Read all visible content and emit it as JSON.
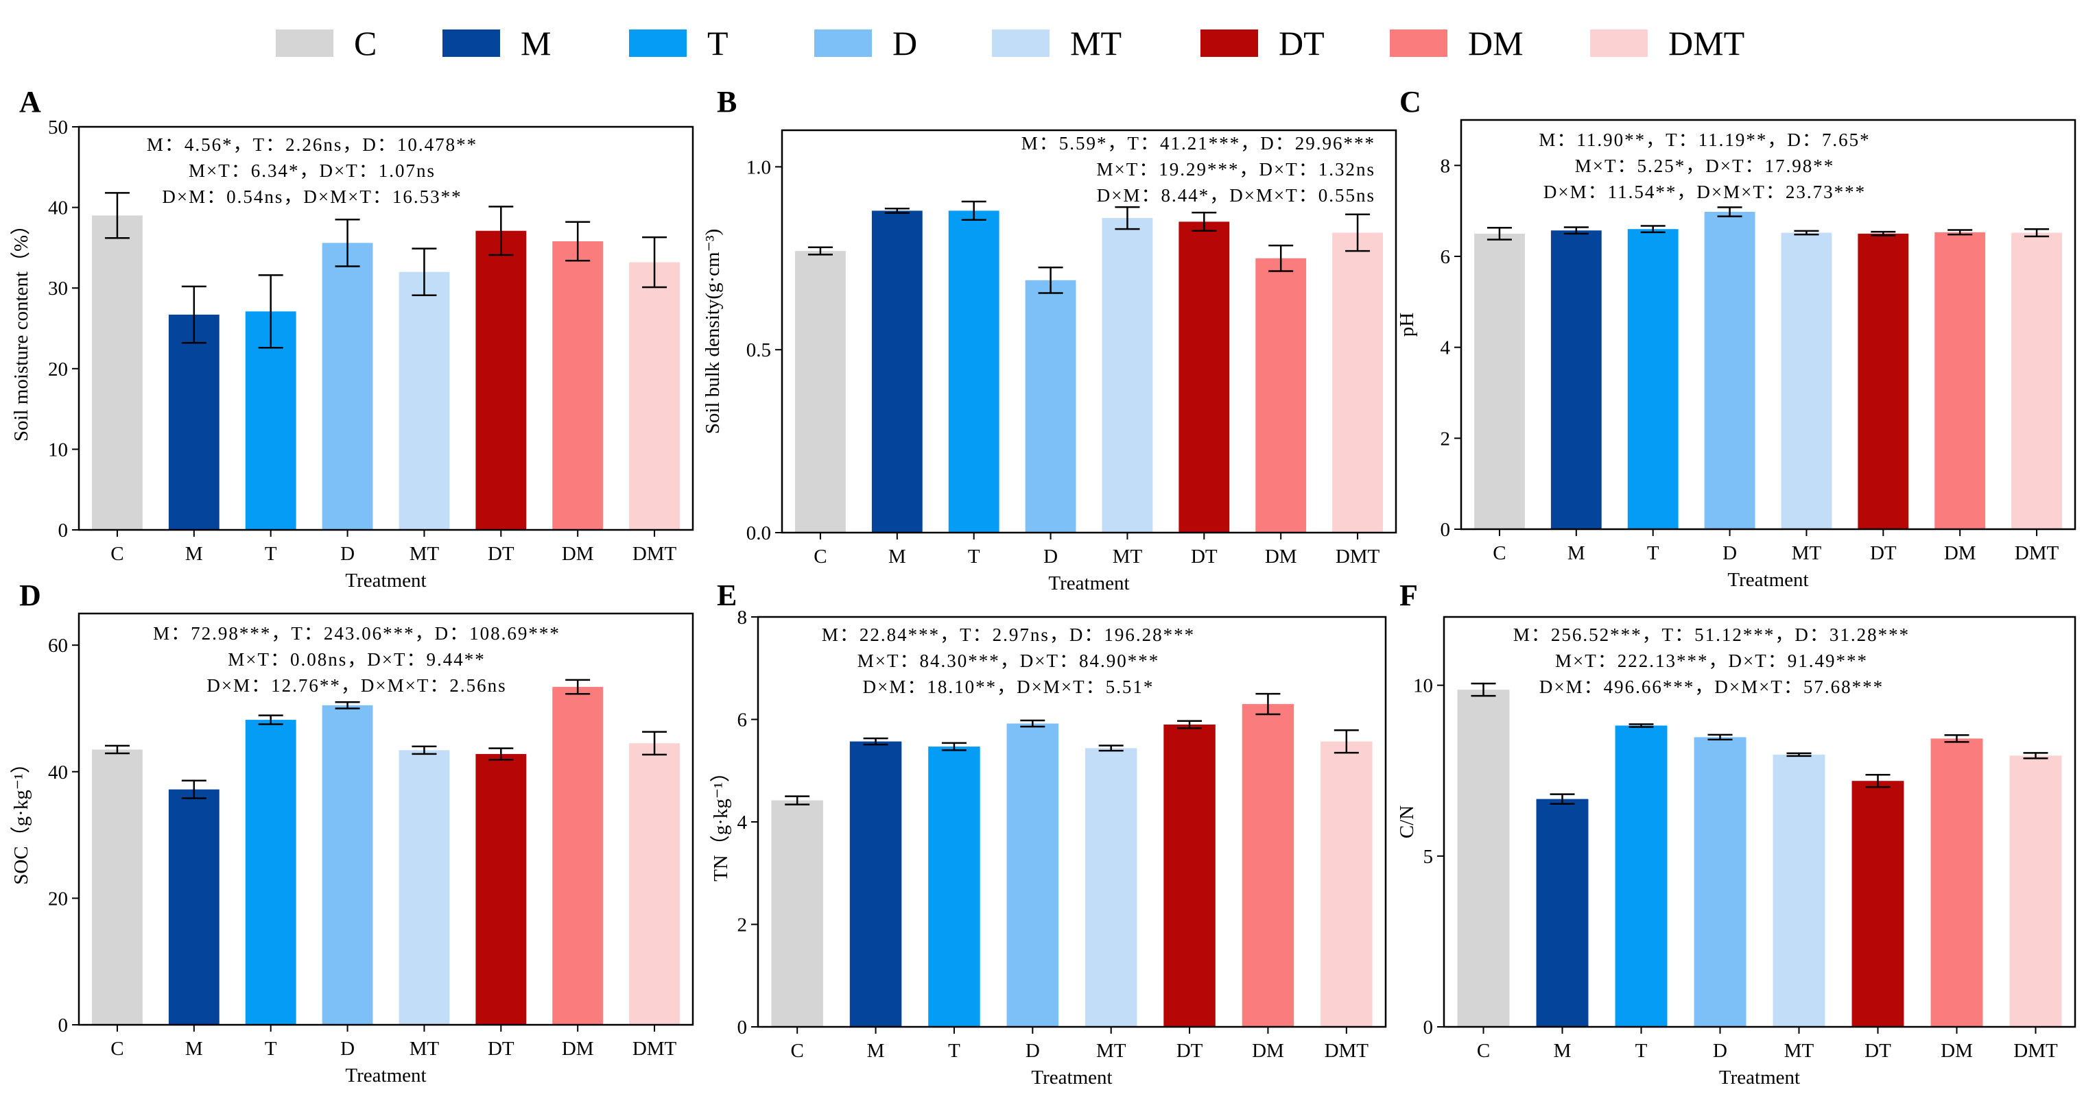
{
  "legend": {
    "items": [
      {
        "label": "C",
        "color": "#d5d5d5"
      },
      {
        "label": "M",
        "color": "#04449a"
      },
      {
        "label": "T",
        "color": "#049cf4"
      },
      {
        "label": "D",
        "color": "#7dbff7"
      },
      {
        "label": "MT",
        "color": "#c1ddf7"
      },
      {
        "label": "DT",
        "color": "#b70606"
      },
      {
        "label": "DM",
        "color": "#fb7c7c"
      },
      {
        "label": "DMT",
        "color": "#fcd1d1"
      }
    ]
  },
  "chart_data": [
    {
      "panel": "A",
      "type": "bar",
      "title": "",
      "xlabel": "Treatment",
      "ylabel": "Soil moisture content（%）",
      "ylim": [
        0,
        50
      ],
      "yticks": [
        "0",
        "10",
        "20",
        "30",
        "40",
        "50"
      ],
      "categories": [
        "C",
        "M",
        "T",
        "D",
        "MT",
        "DT",
        "DM",
        "DMT"
      ],
      "values": [
        39.0,
        26.7,
        27.1,
        35.6,
        32.0,
        37.1,
        35.8,
        33.2
      ],
      "errors": [
        2.8,
        3.5,
        4.5,
        2.9,
        2.9,
        3.0,
        2.4,
        3.1
      ],
      "annotations": [
        "M：4.56*，T：2.26ns，D：10.478**",
        "M×T：6.34*，D×T：1.07ns",
        "D×M：0.54ns，D×M×T：16.53**"
      ]
    },
    {
      "panel": "B",
      "type": "bar",
      "title": "",
      "xlabel": "Treatment",
      "ylabel": "Soil bulk density(g·cm⁻³)",
      "ylim": [
        0,
        1.1
      ],
      "yticks": [
        "0.0",
        "0.5",
        "1.0"
      ],
      "categories": [
        "C",
        "M",
        "T",
        "D",
        "MT",
        "DT",
        "DM",
        "DMT"
      ],
      "values": [
        0.77,
        0.88,
        0.88,
        0.69,
        0.86,
        0.85,
        0.75,
        0.82
      ],
      "errors": [
        0.01,
        0.006,
        0.025,
        0.035,
        0.03,
        0.025,
        0.035,
        0.05
      ],
      "annotations": [
        "M：5.59*，T：41.21***，D：29.96***",
        "M×T：19.29***，D×T：1.32ns",
        "D×M：8.44*，D×M×T：0.55ns"
      ]
    },
    {
      "panel": "C",
      "type": "bar",
      "title": "",
      "xlabel": "Treatment",
      "ylabel": "pH",
      "ylim": [
        0,
        9
      ],
      "yticks": [
        "0",
        "2",
        "4",
        "6",
        "8"
      ],
      "categories": [
        "C",
        "M",
        "T",
        "D",
        "MT",
        "DT",
        "DM",
        "DMT"
      ],
      "values": [
        6.5,
        6.57,
        6.6,
        6.98,
        6.52,
        6.5,
        6.53,
        6.52
      ],
      "errors": [
        0.13,
        0.07,
        0.07,
        0.1,
        0.04,
        0.04,
        0.05,
        0.08
      ],
      "annotations": [
        "M：11.90**，T：11.19**，D：7.65*",
        "M×T：5.25*，D×T：17.98**",
        "D×M：11.54**，D×M×T：23.73***"
      ]
    },
    {
      "panel": "D",
      "type": "bar",
      "title": "",
      "xlabel": "Treatment",
      "ylabel": "SOC（g·kg⁻¹）",
      "ylim": [
        0,
        65
      ],
      "yticks": [
        "0",
        "20",
        "40",
        "60"
      ],
      "categories": [
        "C",
        "M",
        "T",
        "D",
        "MT",
        "DT",
        "DM",
        "DMT"
      ],
      "values": [
        43.5,
        37.2,
        48.2,
        50.5,
        43.4,
        42.8,
        53.4,
        44.5
      ],
      "errors": [
        0.6,
        1.4,
        0.7,
        0.5,
        0.6,
        0.9,
        1.1,
        1.8
      ],
      "annotations": [
        "M：72.98***，T：243.06***，D：108.69***",
        "M×T：0.08ns，D×T：9.44**",
        "D×M：12.76**，D×M×T：2.56ns"
      ]
    },
    {
      "panel": "E",
      "type": "bar",
      "title": "",
      "xlabel": "Treatment",
      "ylabel": "TN（g·kg⁻¹）",
      "ylim": [
        0,
        8
      ],
      "yticks": [
        "0",
        "2",
        "4",
        "6",
        "8"
      ],
      "categories": [
        "C",
        "M",
        "T",
        "D",
        "MT",
        "DT",
        "DM",
        "DMT"
      ],
      "values": [
        4.42,
        5.57,
        5.47,
        5.92,
        5.44,
        5.9,
        6.3,
        5.57
      ],
      "errors": [
        0.08,
        0.06,
        0.07,
        0.06,
        0.05,
        0.07,
        0.2,
        0.22
      ],
      "annotations": [
        "M：22.84***，T：2.97ns，D：196.28***",
        "M×T：84.30***，D×T：84.90***",
        "D×M：18.10**，D×M×T：5.51*"
      ]
    },
    {
      "panel": "F",
      "type": "bar",
      "title": "",
      "xlabel": "Treatment",
      "ylabel": "C/N",
      "ylim": [
        0,
        12
      ],
      "yticks": [
        "0",
        "5",
        "10"
      ],
      "categories": [
        "C",
        "M",
        "T",
        "D",
        "MT",
        "DT",
        "DM",
        "DMT"
      ],
      "values": [
        9.87,
        6.67,
        8.82,
        8.48,
        7.97,
        7.2,
        8.44,
        7.94
      ],
      "errors": [
        0.18,
        0.14,
        0.04,
        0.07,
        0.04,
        0.18,
        0.1,
        0.08
      ],
      "annotations": [
        "M：256.52***，T：51.12***，D：31.28***",
        "M×T：222.13***，D×T：91.49***",
        "D×M：496.66***，D×M×T：57.68***"
      ]
    }
  ]
}
